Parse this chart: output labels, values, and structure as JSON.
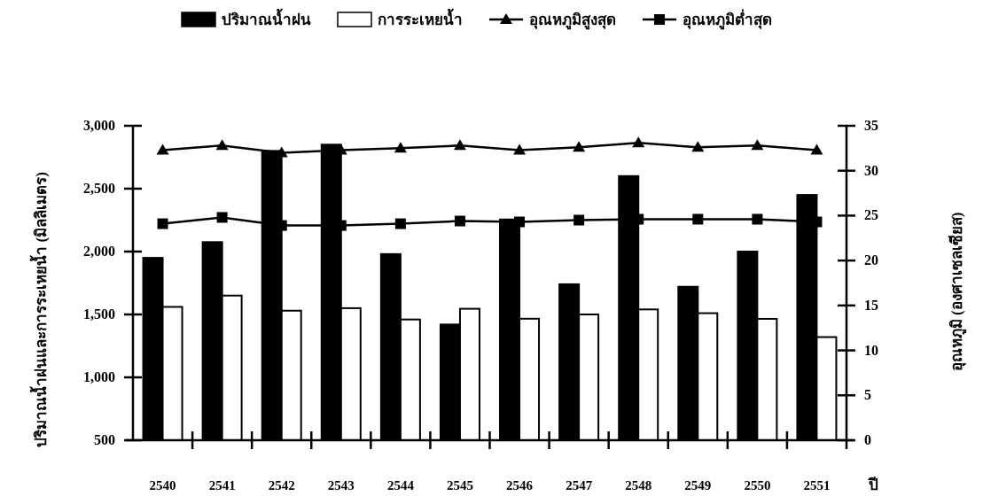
{
  "chart_data": {
    "type": "bar",
    "xlabel": "ปี",
    "ylabel": "ปริมาณน้ำฝนและการระเหยน้ำ (มิลลิเมตร)",
    "y2label": "อุณหภูมิ (องศาเซลเซียส)",
    "categories": [
      "2540",
      "2541",
      "2542",
      "2543",
      "2544",
      "2545",
      "2546",
      "2547",
      "2548",
      "2549",
      "2550",
      "2551"
    ],
    "ylim": [
      500,
      3000
    ],
    "yticks": [
      {
        "value": 500,
        "label": "500"
      },
      {
        "value": 1000,
        "label": "1,000"
      },
      {
        "value": 1500,
        "label": "1,500"
      },
      {
        "value": 2000,
        "label": "2,000"
      },
      {
        "value": 2500,
        "label": "2,500"
      },
      {
        "value": 3000,
        "label": "3,000"
      }
    ],
    "y2lim": [
      0,
      35
    ],
    "y2ticks": [
      0,
      5,
      10,
      15,
      20,
      25,
      30,
      35
    ],
    "legend": "top",
    "grid": false,
    "series": [
      {
        "name": "ปริมาณน้ำฝน",
        "color": "#000000",
        "values": [
          1950,
          2075,
          2800,
          2850,
          1980,
          1420,
          2255,
          1740,
          2600,
          1720,
          2000,
          2450
        ]
      },
      {
        "name": "การระเหยน้ำ",
        "color": "#ffffff",
        "values": [
          1560,
          1650,
          1530,
          1550,
          1460,
          1545,
          1466,
          1500,
          1540,
          1510,
          1465,
          1320
        ]
      },
      {
        "name": "อุณหภูมิสูงสุด",
        "type": "line",
        "axis": "y2",
        "color": "#000000",
        "marker": "triangle",
        "values": [
          32.3,
          32.8,
          32.0,
          32.3,
          32.5,
          32.8,
          32.3,
          32.6,
          33.1,
          32.6,
          32.8,
          32.3
        ]
      },
      {
        "name": "อุณหภูมิต่ำสุด",
        "type": "line",
        "axis": "y2",
        "color": "#000000",
        "marker": "square",
        "values": [
          24.1,
          24.8,
          23.9,
          23.9,
          24.1,
          24.4,
          24.3,
          24.5,
          24.6,
          24.6,
          24.6,
          24.3
        ]
      }
    ]
  }
}
